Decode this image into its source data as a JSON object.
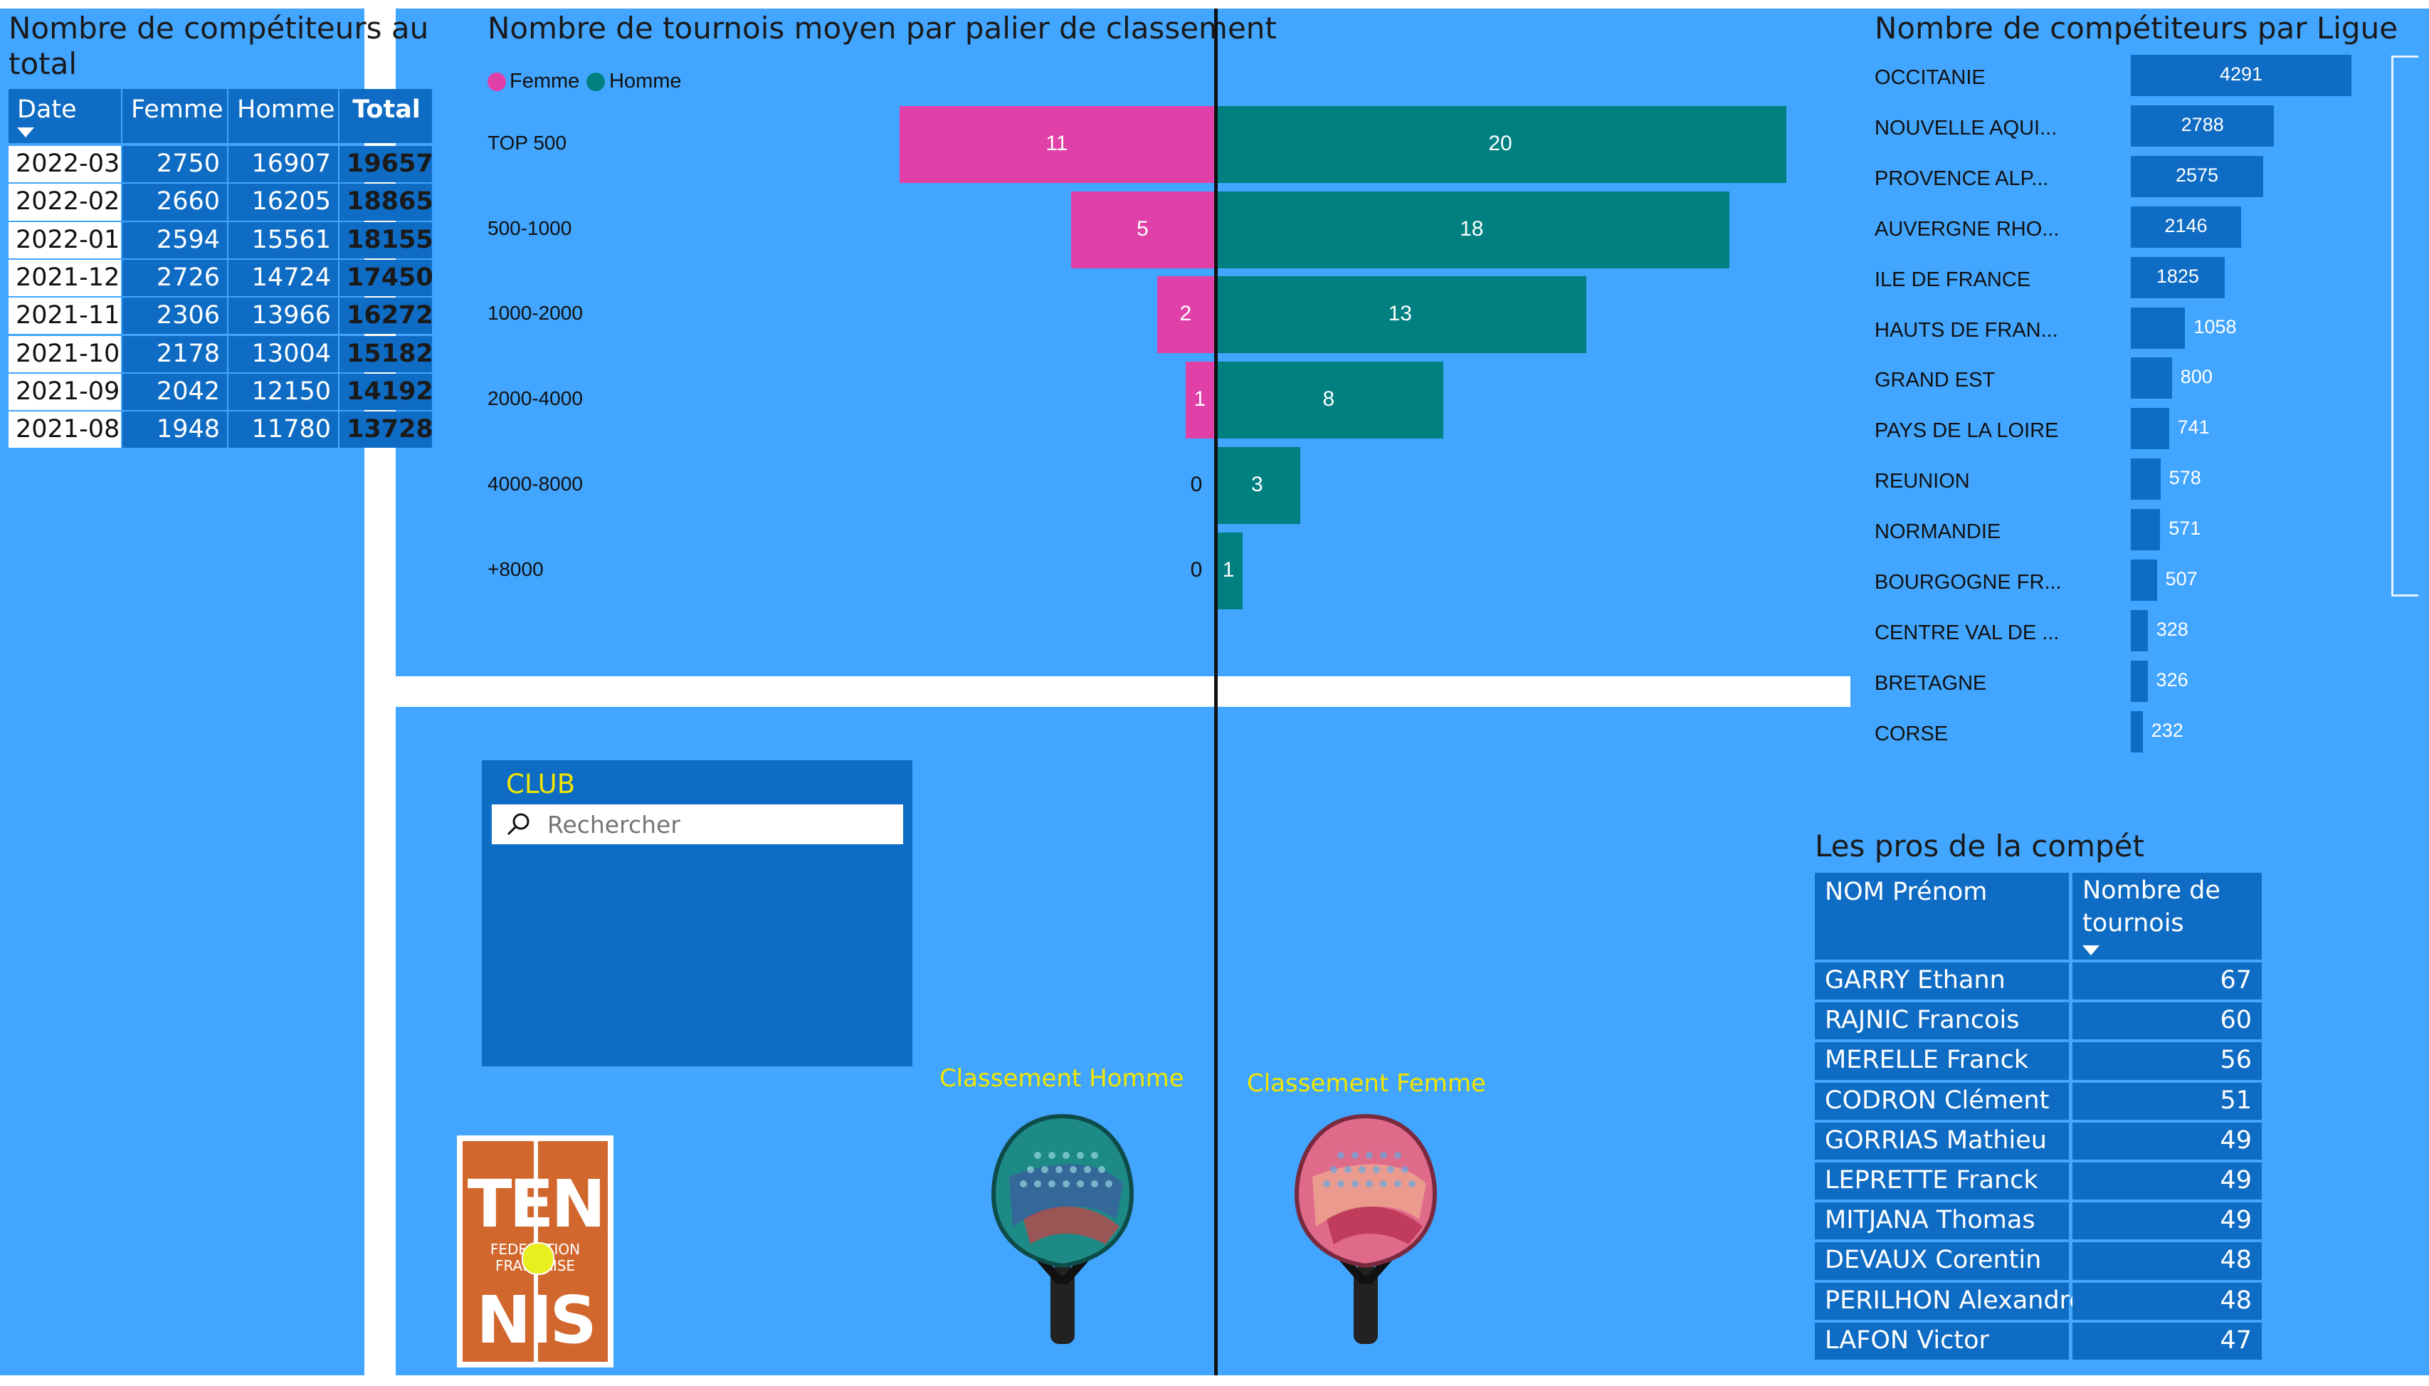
{
  "titles": {
    "competitors_total_line1": "Nombre de compétiteurs au",
    "competitors_total_line2": "total",
    "tournaments_avg": "Nombre de tournois moyen par palier de classement",
    "by_league": "Nombre de compétiteurs par Ligue",
    "pros": "Les pros de la compét"
  },
  "totals_table": {
    "headers": [
      "Date",
      "Femme",
      "Homme",
      "Total"
    ],
    "rows": [
      [
        "2022-03",
        "2750",
        "16907",
        "19657"
      ],
      [
        "2022-02",
        "2660",
        "16205",
        "18865"
      ],
      [
        "2022-01",
        "2594",
        "15561",
        "18155"
      ],
      [
        "2021-12",
        "2726",
        "14724",
        "17450"
      ],
      [
        "2021-11",
        "2306",
        "13966",
        "16272"
      ],
      [
        "2021-10",
        "2178",
        "13004",
        "15182"
      ],
      [
        "2021-09",
        "2042",
        "12150",
        "14192"
      ],
      [
        "2021-08",
        "1948",
        "11780",
        "13728"
      ]
    ]
  },
  "legend": {
    "femme": "Femme",
    "homme": "Homme"
  },
  "colors": {
    "femme": "#e040a8",
    "homme": "#008080",
    "panel": "#42a5ff",
    "dark_blue": "#0f6cc4",
    "accent_yellow": "#f2e600"
  },
  "club_slicer": {
    "title": "CLUB",
    "placeholder": "Rechercher"
  },
  "labels": {
    "classement_homme": "Classement Homme",
    "classement_femme": "Classement Femme"
  },
  "logo": {
    "top": "TEN",
    "middle_1": "FEDERATION",
    "middle_2": "FRANCAISE",
    "bottom": "NIS"
  },
  "pros_table": {
    "header_name": "NOM Prénom",
    "header_count_1": "Nombre de",
    "header_count_2": "tournois",
    "rows": [
      [
        "GARRY Ethann",
        "67"
      ],
      [
        "RAJNIC Francois",
        "60"
      ],
      [
        "MERELLE Franck",
        "56"
      ],
      [
        "CODRON Clément",
        "51"
      ],
      [
        "GORRIAS Mathieu",
        "49"
      ],
      [
        "LEPRETTE Franck",
        "49"
      ],
      [
        "MITJANA Thomas",
        "49"
      ],
      [
        "DEVAUX Corentin",
        "48"
      ],
      [
        "PERILHON Alexandre",
        "48"
      ],
      [
        "LAFON Victor",
        "47"
      ]
    ]
  },
  "chart_data": [
    {
      "type": "bar",
      "title": "Nombre de tournois moyen par palier de classement",
      "orientation": "horizontal-diverging",
      "categories": [
        "TOP 500",
        "500-1000",
        "1000-2000",
        "2000-4000",
        "4000-8000",
        "+8000"
      ],
      "series": [
        {
          "name": "Femme",
          "values": [
            11,
            5,
            2,
            1,
            0,
            0
          ]
        },
        {
          "name": "Homme",
          "values": [
            20,
            18,
            13,
            8,
            3,
            1
          ]
        }
      ],
      "legend": "top-left"
    },
    {
      "type": "bar",
      "title": "Nombre de compétiteurs par Ligue",
      "orientation": "horizontal",
      "categories": [
        "OCCITANIE",
        "NOUVELLE AQUI...",
        "PROVENCE ALP...",
        "AUVERGNE RHO...",
        "ILE DE FRANCE",
        "HAUTS DE FRAN...",
        "GRAND EST",
        "PAYS DE LA LOIRE",
        "REUNION",
        "NORMANDIE",
        "BOURGOGNE FR...",
        "CENTRE VAL DE ...",
        "BRETAGNE",
        "CORSE"
      ],
      "values": [
        4291,
        2788,
        2575,
        2146,
        1825,
        1058,
        800,
        741,
        578,
        571,
        507,
        328,
        326,
        232
      ]
    }
  ]
}
